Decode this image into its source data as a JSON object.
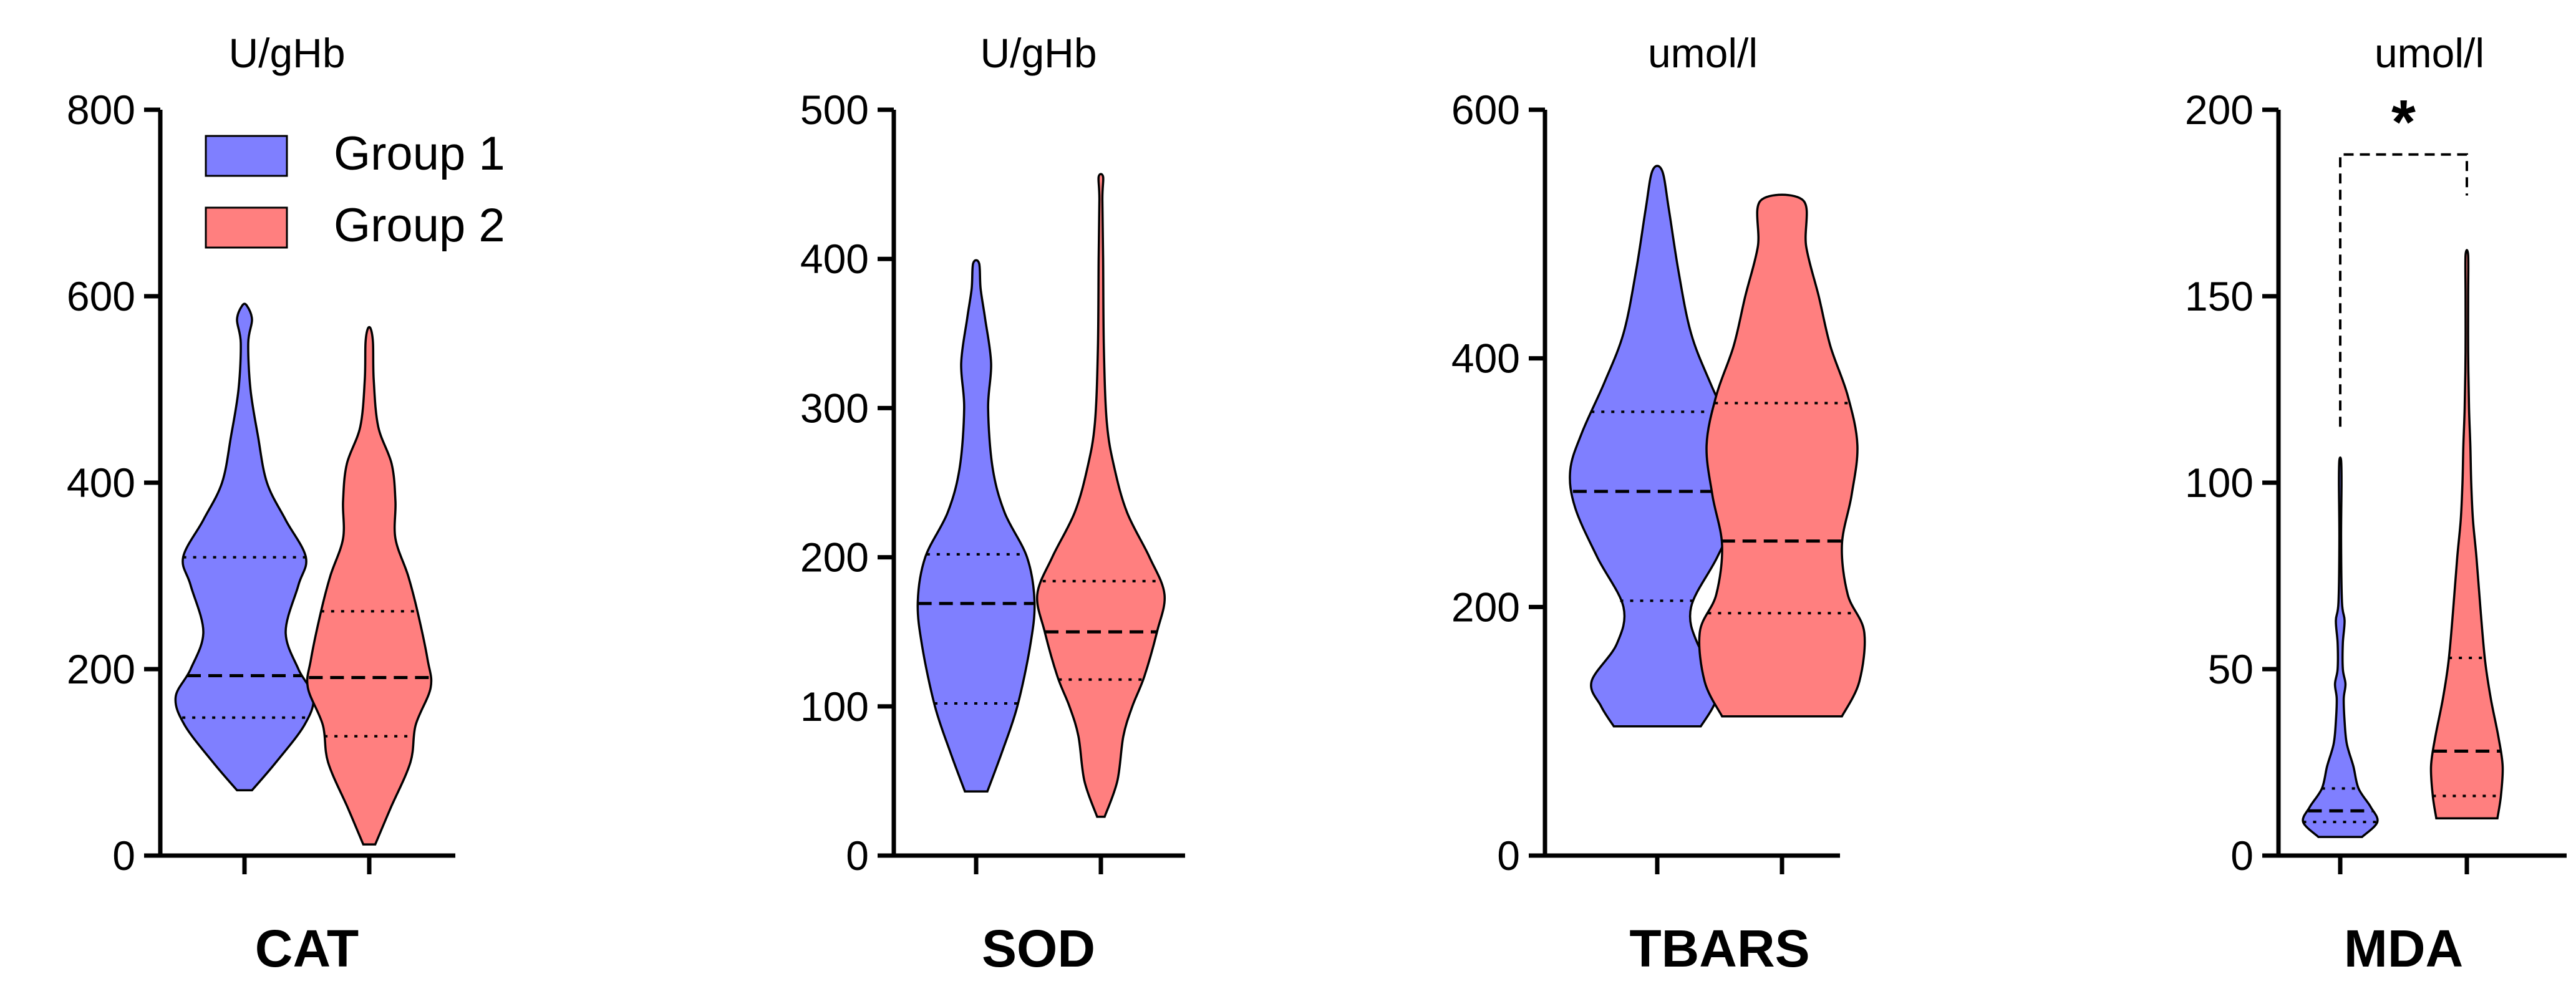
{
  "colors": {
    "group1": "#7f7fff",
    "group2": "#ff7f7f"
  },
  "legend": [
    {
      "label": "Group 1",
      "color": "#7f7fff"
    },
    {
      "label": "Group 2",
      "color": "#ff7f7f"
    }
  ],
  "chart_data": [
    {
      "type": "violin",
      "title": "CAT",
      "unit": "U/gHb",
      "ylim": [
        0,
        800
      ],
      "yticks": [
        0,
        200,
        400,
        600,
        800
      ],
      "legend_position": "top-left",
      "series": [
        {
          "name": "Group 1",
          "color": "#7f7fff",
          "min": 70,
          "max": 590,
          "q1": 148,
          "median": 193,
          "q3": 320,
          "density": [
            [
              70,
              0.1
            ],
            [
              100,
              0.42
            ],
            [
              140,
              0.8
            ],
            [
              170,
              0.92
            ],
            [
              200,
              0.72
            ],
            [
              240,
              0.55
            ],
            [
              290,
              0.72
            ],
            [
              320,
              0.82
            ],
            [
              360,
              0.55
            ],
            [
              400,
              0.3
            ],
            [
              450,
              0.18
            ],
            [
              500,
              0.08
            ],
            [
              550,
              0.05
            ],
            [
              575,
              0.1
            ],
            [
              590,
              0.03
            ]
          ]
        },
        {
          "name": "Group 2",
          "color": "#ff7f7f",
          "min": 12,
          "max": 565,
          "q1": 128,
          "median": 191,
          "q3": 262,
          "density": [
            [
              12,
              0.08
            ],
            [
              50,
              0.28
            ],
            [
              100,
              0.55
            ],
            [
              140,
              0.62
            ],
            [
              180,
              0.82
            ],
            [
              210,
              0.78
            ],
            [
              260,
              0.65
            ],
            [
              300,
              0.52
            ],
            [
              340,
              0.35
            ],
            [
              380,
              0.35
            ],
            [
              420,
              0.3
            ],
            [
              460,
              0.12
            ],
            [
              510,
              0.06
            ],
            [
              550,
              0.05
            ],
            [
              565,
              0.02
            ]
          ]
        }
      ]
    },
    {
      "type": "violin",
      "title": "SOD",
      "unit": "U/gHb",
      "ylim": [
        0,
        500
      ],
      "yticks": [
        0,
        100,
        200,
        300,
        400,
        500
      ],
      "series": [
        {
          "name": "Group 1",
          "color": "#7f7fff",
          "min": 43,
          "max": 397,
          "q1": 102,
          "median": 169,
          "q3": 202,
          "density": [
            [
              43,
              0.15
            ],
            [
              70,
              0.35
            ],
            [
              100,
              0.55
            ],
            [
              140,
              0.72
            ],
            [
              170,
              0.78
            ],
            [
              200,
              0.68
            ],
            [
              230,
              0.38
            ],
            [
              260,
              0.22
            ],
            [
              300,
              0.16
            ],
            [
              330,
              0.2
            ],
            [
              360,
              0.12
            ],
            [
              380,
              0.06
            ],
            [
              397,
              0.04
            ]
          ]
        },
        {
          "name": "Group 2",
          "color": "#ff7f7f",
          "min": 26,
          "max": 455,
          "q1": 118,
          "median": 150,
          "q3": 184,
          "density": [
            [
              26,
              0.05
            ],
            [
              50,
              0.22
            ],
            [
              80,
              0.3
            ],
            [
              100,
              0.42
            ],
            [
              120,
              0.58
            ],
            [
              150,
              0.75
            ],
            [
              175,
              0.85
            ],
            [
              200,
              0.65
            ],
            [
              230,
              0.35
            ],
            [
              260,
              0.18
            ],
            [
              290,
              0.08
            ],
            [
              340,
              0.04
            ],
            [
              400,
              0.03
            ],
            [
              440,
              0.02
            ],
            [
              455,
              0.03
            ]
          ]
        }
      ]
    },
    {
      "type": "violin",
      "title": "TBARS",
      "unit": "umol/l",
      "ylim": [
        0,
        600
      ],
      "yticks": [
        0,
        200,
        400,
        600
      ],
      "series": [
        {
          "name": "Group 1",
          "color": "#7f7fff",
          "min": 104,
          "max": 551,
          "q1": 205,
          "median": 293,
          "q3": 357,
          "density": [
            [
              104,
              0.45
            ],
            [
              120,
              0.58
            ],
            [
              140,
              0.68
            ],
            [
              170,
              0.42
            ],
            [
              200,
              0.35
            ],
            [
              240,
              0.62
            ],
            [
              280,
              0.85
            ],
            [
              310,
              0.9
            ],
            [
              340,
              0.78
            ],
            [
              380,
              0.55
            ],
            [
              420,
              0.35
            ],
            [
              470,
              0.22
            ],
            [
              520,
              0.12
            ],
            [
              551,
              0.05
            ]
          ]
        },
        {
          "name": "Group 2",
          "color": "#ff7f7f",
          "min": 112,
          "max": 527,
          "q1": 195,
          "median": 253,
          "q3": 364,
          "density": [
            [
              112,
              0.62
            ],
            [
              140,
              0.8
            ],
            [
              180,
              0.85
            ],
            [
              210,
              0.68
            ],
            [
              250,
              0.62
            ],
            [
              290,
              0.72
            ],
            [
              330,
              0.78
            ],
            [
              370,
              0.68
            ],
            [
              410,
              0.5
            ],
            [
              450,
              0.38
            ],
            [
              490,
              0.25
            ],
            [
              527,
              0.22
            ]
          ]
        }
      ]
    },
    {
      "type": "violin",
      "title": "MDA",
      "unit": "umol/l",
      "ylim": [
        0,
        200
      ],
      "yticks": [
        0,
        50,
        100,
        150,
        200
      ],
      "significance": {
        "label": "*",
        "y_left": 115,
        "y_right": 177,
        "y_top": 188
      },
      "series": [
        {
          "name": "Group 1",
          "color": "#7f7fff",
          "min": 5,
          "max": 106,
          "q1": 9,
          "median": 12,
          "q3": 18,
          "density": [
            [
              5,
              0.5
            ],
            [
              9,
              0.85
            ],
            [
              13,
              0.7
            ],
            [
              18,
              0.42
            ],
            [
              24,
              0.3
            ],
            [
              30,
              0.15
            ],
            [
              36,
              0.1
            ],
            [
              42,
              0.08
            ],
            [
              46,
              0.12
            ],
            [
              50,
              0.06
            ],
            [
              57,
              0.06
            ],
            [
              63,
              0.1
            ],
            [
              68,
              0.04
            ],
            [
              85,
              0.02
            ],
            [
              100,
              0.03
            ],
            [
              106,
              0.02
            ]
          ]
        },
        {
          "name": "Group 2",
          "color": "#ff7f7f",
          "min": 10,
          "max": 161,
          "q1": 16,
          "median": 28,
          "q3": 53,
          "density": [
            [
              10,
              0.7
            ],
            [
              16,
              0.78
            ],
            [
              24,
              0.82
            ],
            [
              32,
              0.72
            ],
            [
              42,
              0.55
            ],
            [
              52,
              0.42
            ],
            [
              65,
              0.32
            ],
            [
              80,
              0.22
            ],
            [
              90,
              0.14
            ],
            [
              100,
              0.1
            ],
            [
              110,
              0.08
            ],
            [
              120,
              0.05
            ],
            [
              135,
              0.03
            ],
            [
              150,
              0.03
            ],
            [
              161,
              0.03
            ]
          ]
        }
      ]
    }
  ]
}
